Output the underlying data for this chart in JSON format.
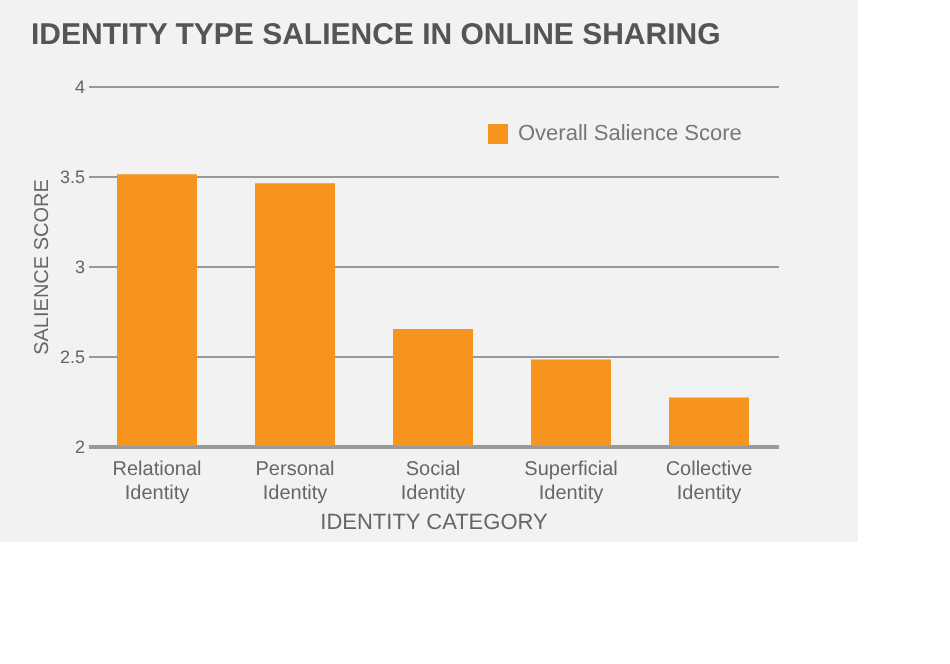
{
  "chart_data": {
    "type": "bar",
    "title": "IDENTITY TYPE SALIENCE IN ONLINE SHARING",
    "xlabel": "IDENTITY CATEGORY",
    "ylabel": "SALIENCE SCORE",
    "categories": [
      "Relational Identity",
      "Personal Identity",
      "Social Identity",
      "Superficial Identity",
      "Collective Identity"
    ],
    "series": [
      {
        "name": "Overall Salience Score",
        "color": "#f7941d",
        "values": [
          3.51,
          3.46,
          2.65,
          2.48,
          2.27
        ]
      }
    ],
    "ylim": [
      2,
      4
    ],
    "yticks": [
      2,
      2.5,
      3,
      3.5,
      4
    ],
    "grid": "y",
    "legend": "top right"
  }
}
